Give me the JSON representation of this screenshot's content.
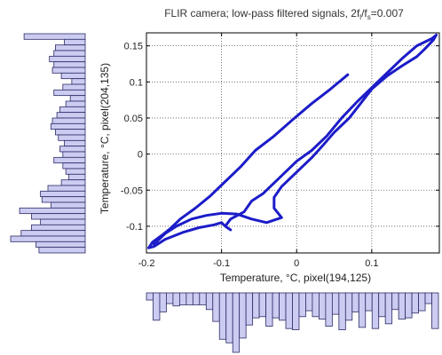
{
  "chart_data": {
    "type": "line",
    "title_main": "FLIR camera; low-pass filtered signals, 2f",
    "title_sub1": "l",
    "title_mid": "/f",
    "title_sub2": "s",
    "title_tail": "=0.007",
    "xlabel": "Temperature, °C, pixel(194,125)",
    "ylabel": "Temperature, °C, pixel(204,135)",
    "xlim": [
      -0.2,
      0.19
    ],
    "ylim": [
      -0.137,
      0.168
    ],
    "xticks": [
      -0.2,
      -0.1,
      0,
      0.1
    ],
    "xtick_labels": [
      "-0.2",
      "-0.1",
      "0",
      "0.1"
    ],
    "yticks": [
      -0.1,
      -0.05,
      0,
      0.05,
      0.1,
      0.15
    ],
    "ytick_labels": [
      "-0.1",
      "-0.05",
      "0",
      "0.05",
      "0.1",
      "0.15"
    ],
    "grid": true,
    "colors": {
      "line": "#1c1cc8",
      "hist_fill": "#ccccf2",
      "hist_edge": "#2b2b66",
      "axis": "#000000",
      "grid": "#555555"
    },
    "series": [
      {
        "x": [
          0.068,
          0.045,
          0.02,
          -0.005,
          -0.03,
          -0.055,
          -0.075,
          -0.095,
          -0.115,
          -0.135,
          -0.155,
          -0.168,
          -0.18,
          -0.192,
          -0.197,
          -0.19,
          -0.175,
          -0.15,
          -0.13,
          -0.11,
          -0.1,
          -0.095,
          -0.088,
          -0.095,
          -0.088,
          -0.07,
          -0.06,
          -0.045,
          -0.035,
          -0.025,
          -0.015,
          0.0,
          0.02,
          0.04,
          0.06,
          0.08,
          0.1,
          0.12,
          0.14,
          0.16,
          0.18,
          0.186,
          0.182,
          0.17,
          0.16,
          0.14,
          0.12,
          0.1,
          0.085,
          0.07,
          0.05,
          0.035,
          0.02,
          0.0,
          -0.02,
          -0.03,
          -0.03,
          -0.02,
          -0.04,
          -0.06,
          -0.08,
          -0.1,
          -0.12,
          -0.14,
          -0.16,
          -0.175,
          -0.19
        ],
        "y": [
          0.11,
          0.09,
          0.07,
          0.048,
          0.025,
          0.005,
          -0.018,
          -0.038,
          -0.058,
          -0.075,
          -0.09,
          -0.103,
          -0.113,
          -0.122,
          -0.13,
          -0.128,
          -0.118,
          -0.108,
          -0.102,
          -0.098,
          -0.095,
          -0.1,
          -0.105,
          -0.1,
          -0.09,
          -0.08,
          -0.065,
          -0.055,
          -0.045,
          -0.035,
          -0.025,
          -0.01,
          0.005,
          0.025,
          0.05,
          0.072,
          0.092,
          0.112,
          0.132,
          0.15,
          0.16,
          0.165,
          0.158,
          0.145,
          0.135,
          0.122,
          0.108,
          0.09,
          0.07,
          0.05,
          0.03,
          0.012,
          -0.005,
          -0.025,
          -0.045,
          -0.06,
          -0.075,
          -0.088,
          -0.095,
          -0.09,
          -0.083,
          -0.082,
          -0.085,
          -0.09,
          -0.1,
          -0.11,
          -0.125
        ]
      }
    ],
    "hist_y_values": [
      0.82,
      0.28,
      0.4,
      0.42,
      0.48,
      0.42,
      0.44,
      0.32,
      0.18,
      0.3,
      0.42,
      0.2,
      0.26,
      0.34,
      0.38,
      0.44,
      0.46,
      0.4,
      0.36,
      0.28,
      0.34,
      0.3,
      0.42,
      0.3,
      0.26,
      0.22,
      0.32,
      0.5,
      0.6,
      0.58,
      0.46,
      0.88,
      0.72,
      0.6,
      0.72,
      0.86,
      1.0,
      0.66,
      0.62
    ],
    "hist_x_values": [
      0.12,
      0.46,
      0.32,
      0.18,
      0.22,
      0.2,
      0.2,
      0.2,
      0.2,
      0.28,
      0.48,
      0.78,
      0.84,
      1.0,
      0.76,
      0.54,
      0.42,
      0.4,
      0.56,
      0.42,
      0.46,
      0.6,
      0.62,
      0.4,
      0.3,
      0.4,
      0.44,
      0.56,
      0.36,
      0.62,
      0.46,
      0.32,
      0.58,
      0.3,
      0.6,
      0.4,
      0.52,
      0.28,
      0.44,
      0.42,
      0.34,
      0.3,
      0.18,
      0.6
    ]
  }
}
